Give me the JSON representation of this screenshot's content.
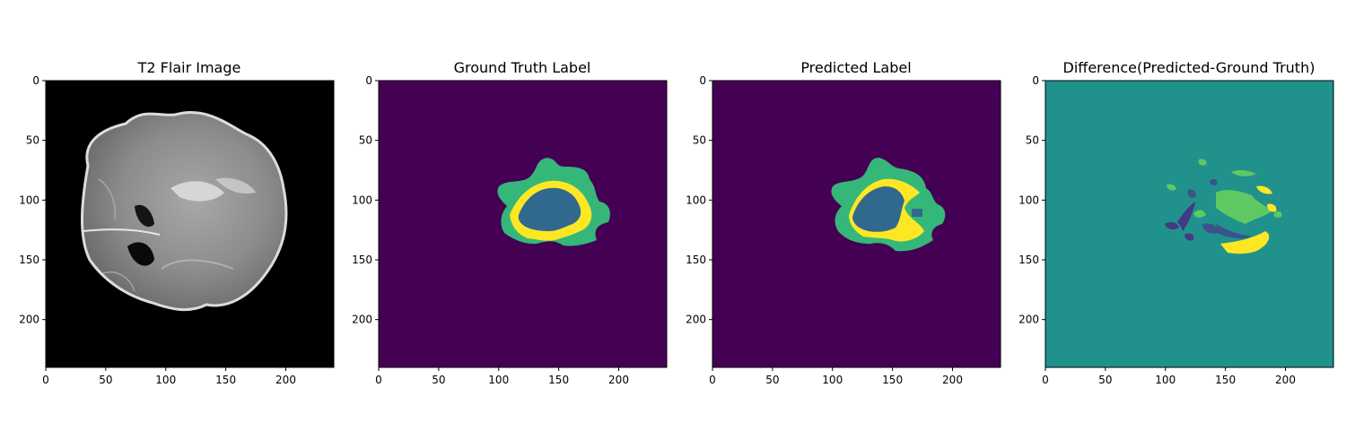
{
  "chart_data": [
    {
      "type": "heatmap",
      "title": "T2 Flair Image",
      "colormap": "gray",
      "xlim": [
        0,
        240
      ],
      "ylim": [
        240,
        0
      ],
      "xticks": [
        0,
        50,
        100,
        150,
        200
      ],
      "yticks": [
        0,
        50,
        100,
        150,
        200
      ]
    },
    {
      "type": "heatmap",
      "title": "Ground Truth Label",
      "colormap": "viridis",
      "xlim": [
        0,
        240
      ],
      "ylim": [
        240,
        0
      ],
      "xticks": [
        0,
        50,
        100,
        150,
        200
      ],
      "yticks": [
        0,
        50,
        100,
        150,
        200
      ]
    },
    {
      "type": "heatmap",
      "title": "Predicted Label",
      "colormap": "viridis",
      "xlim": [
        0,
        240
      ],
      "ylim": [
        240,
        0
      ],
      "xticks": [
        0,
        50,
        100,
        150,
        200
      ],
      "yticks": [
        0,
        50,
        100,
        150,
        200
      ]
    },
    {
      "type": "heatmap",
      "title": "Difference(Predicted-Ground Truth)",
      "colormap": "viridis",
      "xlim": [
        0,
        240
      ],
      "ylim": [
        240,
        0
      ],
      "xticks": [
        0,
        50,
        100,
        150,
        200
      ],
      "yticks": [
        0,
        50,
        100,
        150,
        200
      ]
    }
  ],
  "colors": {
    "background_label": "#440154",
    "edema_label": "#35b779",
    "core_label": "#31688e",
    "enhancing_label": "#fde725",
    "difference_zero": "#21918c",
    "difference_neg": "#3b528b",
    "difference_neg_strong": "#443983",
    "difference_pos": "#5ec962"
  }
}
